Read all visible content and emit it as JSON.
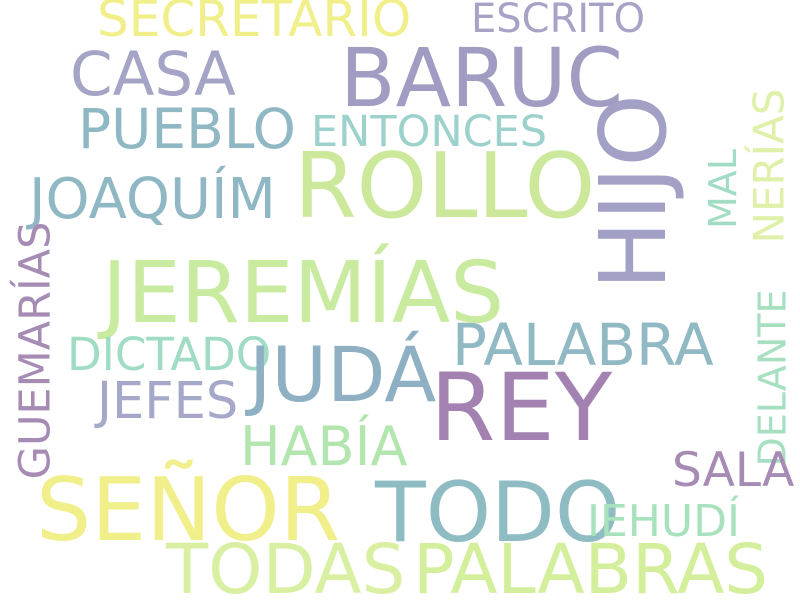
{
  "word_cloud": {
    "words": [
      {
        "text": "SECRETARIO",
        "color": "#f1ef8a"
      },
      {
        "text": "ESCRITO",
        "color": "#a7a3c6"
      },
      {
        "text": "BARUC",
        "color": "#a09cc2"
      },
      {
        "text": "CASA",
        "color": "#a3a4c6"
      },
      {
        "text": "HIJO",
        "color": "#a3a0c6"
      },
      {
        "text": "PUEBLO",
        "color": "#90b8c4"
      },
      {
        "text": "ENTONCES",
        "color": "#9cd2cb"
      },
      {
        "text": "NERÍAS",
        "color": "#dff0a9"
      },
      {
        "text": "ROLLO",
        "color": "#cbe89b"
      },
      {
        "text": "MAL",
        "color": "#a2dcc4"
      },
      {
        "text": "JOAQUÍM",
        "color": "#90b8c4"
      },
      {
        "text": "GUEMARÍAS",
        "color": "#a68bb4"
      },
      {
        "text": "JEREMÍAS",
        "color": "#c8eba0"
      },
      {
        "text": "PALABRA",
        "color": "#90b9c4"
      },
      {
        "text": "DICTADO",
        "color": "#9fdcc3"
      },
      {
        "text": "JUDÁ",
        "color": "#8fb0c3"
      },
      {
        "text": "DELANTE",
        "color": "#a7dfc1"
      },
      {
        "text": "JEFES",
        "color": "#a5a8c8"
      },
      {
        "text": "REY",
        "color": "#a382b2"
      },
      {
        "text": "HABÍA",
        "color": "#b2e6ae"
      },
      {
        "text": "SALA",
        "color": "#a68bb4"
      },
      {
        "text": "SEÑOR",
        "color": "#f1ef8a"
      },
      {
        "text": "TODO",
        "color": "#8fbcc3"
      },
      {
        "text": "IEHUDÍ",
        "color": "#a8e2bd"
      },
      {
        "text": "TODAS",
        "color": "#d9f0a3"
      },
      {
        "text": "PALABRAS",
        "color": "#d3ef9c"
      }
    ]
  }
}
